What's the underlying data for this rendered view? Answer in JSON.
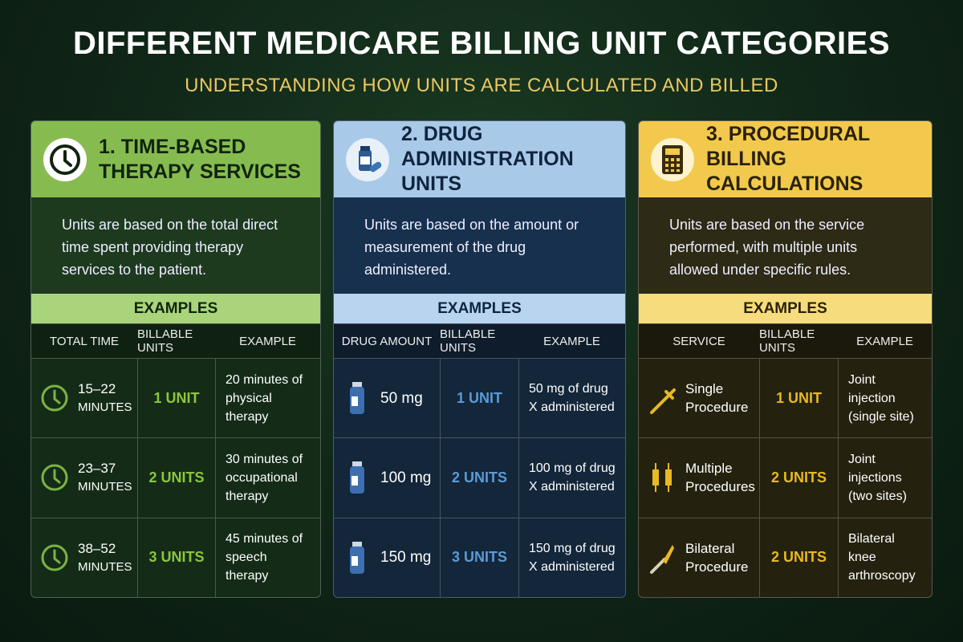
{
  "header": {
    "title": "DIFFERENT MEDICARE BILLING UNIT CATEGORIES",
    "subtitle": "UNDERSTANDING HOW UNITS ARE CALCULATED AND BILLED"
  },
  "panels": [
    {
      "title_lines": [
        "1. TIME-BASED",
        "THERAPY SERVICES"
      ],
      "description": "Units are based on the total direct time spent providing therapy services to the patient.",
      "examples_label": "EXAMPLES",
      "columns": [
        "TOTAL TIME",
        "BILLABLE UNITS",
        "EXAMPLE"
      ],
      "rows": [
        {
          "item_lines": [
            "15–22",
            "MINUTES"
          ],
          "units": "1 UNIT",
          "example": "20 minutes of physical therapy"
        },
        {
          "item_lines": [
            "23–37",
            "MINUTES"
          ],
          "units": "2 UNITS",
          "example": "30 minutes of occupational therapy"
        },
        {
          "item_lines": [
            "38–52",
            "MINUTES"
          ],
          "units": "3 UNITS",
          "example": "45 minutes of speech therapy"
        }
      ]
    },
    {
      "title_lines": [
        "2. DRUG",
        "ADMINISTRATION UNITS"
      ],
      "description": "Units are based on the amount or measurement of the drug administered.",
      "examples_label": "EXAMPLES",
      "columns": [
        "DRUG AMOUNT",
        "BILLABLE UNITS",
        "EXAMPLE"
      ],
      "rows": [
        {
          "item_lines": [
            "50 mg"
          ],
          "units": "1 UNIT",
          "example": "50 mg of drug X administered"
        },
        {
          "item_lines": [
            "100 mg"
          ],
          "units": "2 UNITS",
          "example": "100 mg of drug X administered"
        },
        {
          "item_lines": [
            "150 mg"
          ],
          "units": "3 UNITS",
          "example": "150 mg of drug X administered"
        }
      ]
    },
    {
      "title_lines": [
        "3. PROCEDURAL",
        "BILLING CALCULATIONS"
      ],
      "description": "Units are based on the service performed, with multiple units allowed under specific rules.",
      "examples_label": "EXAMPLES",
      "columns": [
        "SERVICE",
        "BILLABLE UNITS",
        "EXAMPLE"
      ],
      "rows": [
        {
          "item_lines": [
            "Single",
            "Procedure"
          ],
          "units": "1 UNIT",
          "example": "Joint injection (single site)"
        },
        {
          "item_lines": [
            "Multiple",
            "Procedures"
          ],
          "units": "2 UNITS",
          "example": "Joint injections (two sites)"
        },
        {
          "item_lines": [
            "Bilateral",
            "Procedure"
          ],
          "units": "2 UNITS",
          "example": "Bilateral knee arthroscopy"
        }
      ]
    }
  ]
}
